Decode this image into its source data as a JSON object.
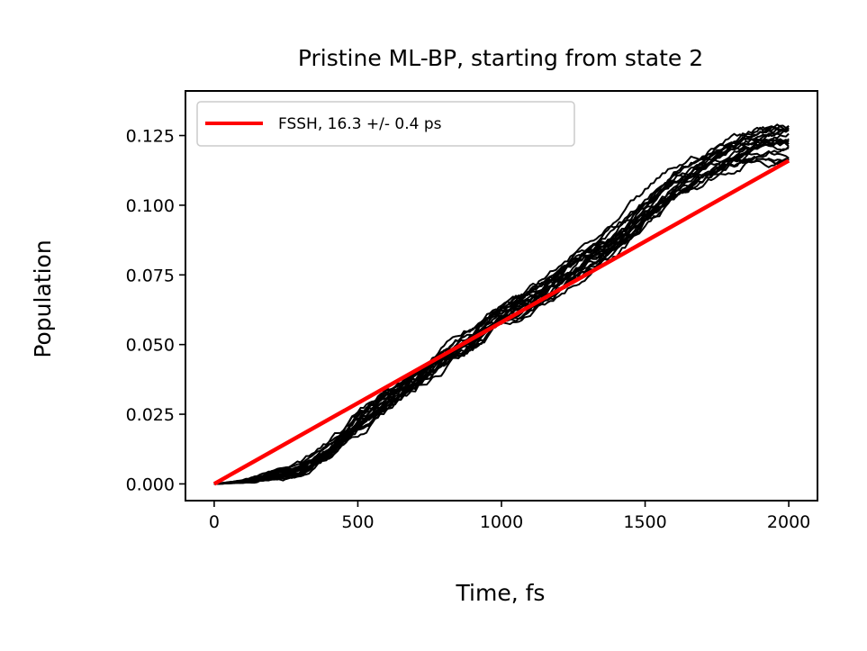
{
  "chart_data": {
    "type": "line",
    "title": "Pristine ML-BP, starting from state 2",
    "xlabel": "Time, fs",
    "ylabel": "Population",
    "xlim": [
      -100,
      2100
    ],
    "ylim": [
      -0.006,
      0.141
    ],
    "xticks": [
      0,
      500,
      1000,
      1500,
      2000
    ],
    "xtick_labels": [
      "0",
      "500",
      "1000",
      "1500",
      "2000"
    ],
    "yticks": [
      0.0,
      0.025,
      0.05,
      0.075,
      0.1,
      0.125
    ],
    "ytick_labels": [
      "0.000",
      "0.025",
      "0.050",
      "0.075",
      "0.100",
      "0.125"
    ],
    "grid": false,
    "legend_position": "upper-left",
    "ensemble": {
      "color": "#000000",
      "count": 20,
      "mean_points": [
        {
          "x": 0,
          "y": 0.0
        },
        {
          "x": 100,
          "y": 0.0008
        },
        {
          "x": 200,
          "y": 0.003
        },
        {
          "x": 300,
          "y": 0.005
        },
        {
          "x": 400,
          "y": 0.012
        },
        {
          "x": 500,
          "y": 0.022
        },
        {
          "x": 600,
          "y": 0.03
        },
        {
          "x": 700,
          "y": 0.036
        },
        {
          "x": 800,
          "y": 0.045
        },
        {
          "x": 900,
          "y": 0.052
        },
        {
          "x": 1000,
          "y": 0.06
        },
        {
          "x": 1100,
          "y": 0.066
        },
        {
          "x": 1200,
          "y": 0.073
        },
        {
          "x": 1300,
          "y": 0.081
        },
        {
          "x": 1400,
          "y": 0.087
        },
        {
          "x": 1500,
          "y": 0.097
        },
        {
          "x": 1600,
          "y": 0.106
        },
        {
          "x": 1700,
          "y": 0.112
        },
        {
          "x": 1800,
          "y": 0.118
        },
        {
          "x": 1900,
          "y": 0.122
        },
        {
          "x": 2000,
          "y": 0.123
        }
      ],
      "spread_at_end": 0.012
    },
    "series": [
      {
        "name": "FSSH,  16.3 +/-  0.4 ps",
        "color": "#ff0000",
        "x": [
          0,
          2000
        ],
        "y": [
          0.0,
          0.116
        ]
      }
    ]
  }
}
